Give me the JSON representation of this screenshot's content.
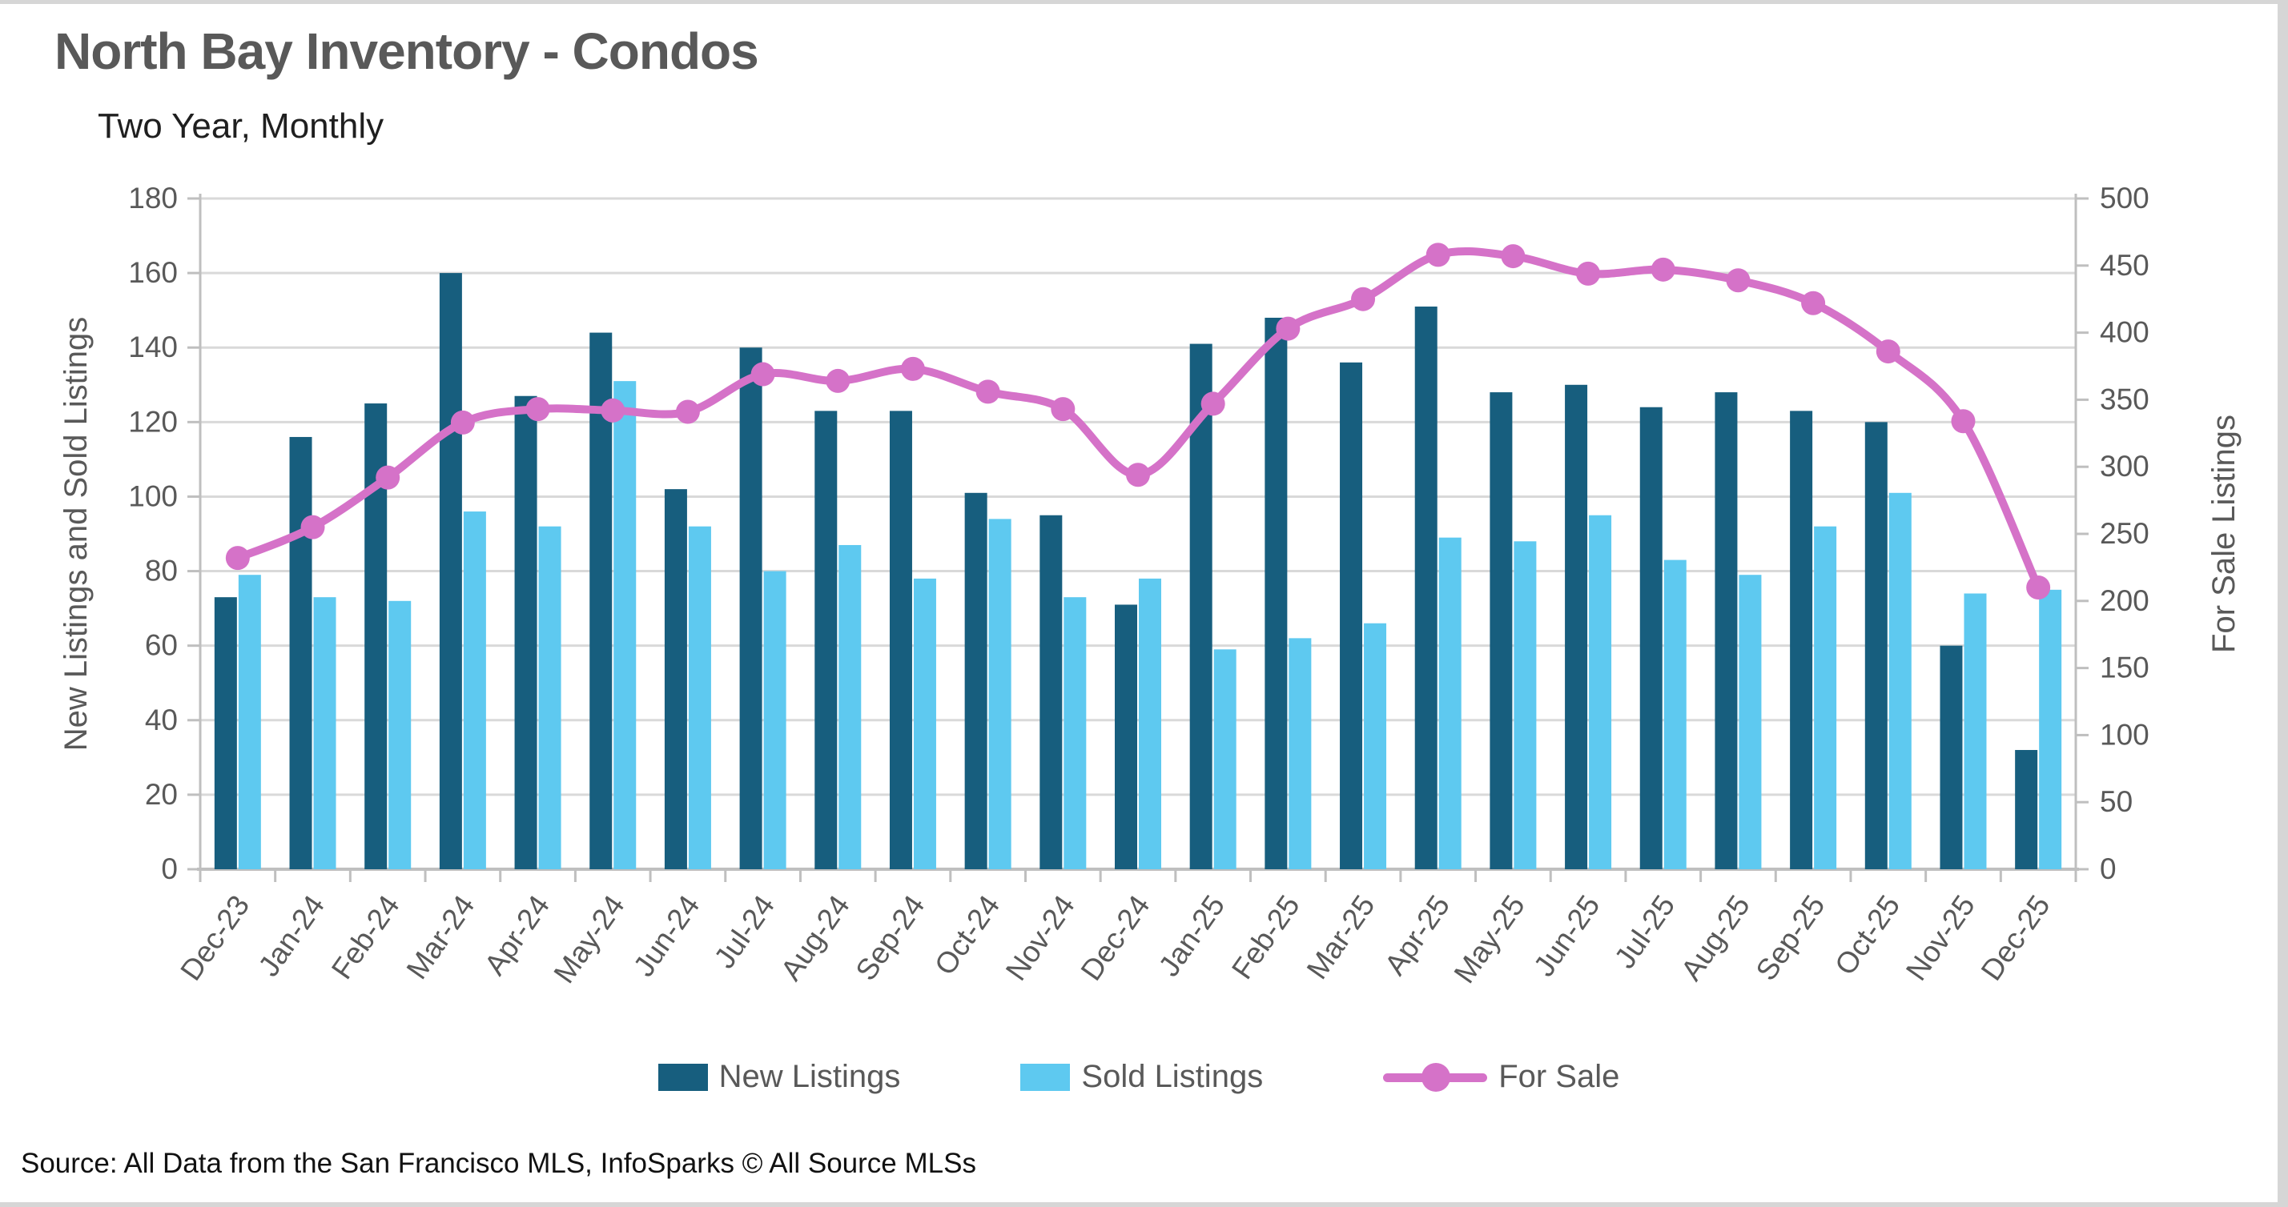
{
  "header": {
    "title": "North Bay Inventory - Condos",
    "subtitle": "Two Year, Monthly"
  },
  "footer": {
    "source": "Source: All Data from the San Francisco MLS, InfoSparks © All Source MLSs"
  },
  "colors": {
    "new_listings": "#175E7E",
    "sold_listings": "#5EC9F0",
    "for_sale": "#D572C8",
    "gridline": "#D9D9D9",
    "axis_line": "#BFBFBF",
    "tick_text": "#595959",
    "title_text": "#595959"
  },
  "chart_data": {
    "type": "bar",
    "subtype": "grouped-bars-with-line",
    "title": "North Bay Inventory - Condos",
    "subtitle": "Two Year, Monthly",
    "grid": true,
    "legend_position": "bottom",
    "categories": [
      "Dec-23",
      "Jan-24",
      "Feb-24",
      "Mar-24",
      "Apr-24",
      "May-24",
      "Jun-24",
      "Jul-24",
      "Aug-24",
      "Sep-24",
      "Oct-24",
      "Nov-24",
      "Dec-24",
      "Jan-25",
      "Feb-25",
      "Mar-25",
      "Apr-25",
      "May-25",
      "Jun-25",
      "Jul-25",
      "Aug-25",
      "Sep-25",
      "Oct-25",
      "Nov-25",
      "Dec-25"
    ],
    "series": [
      {
        "name": "New Listings",
        "type": "bar",
        "axis": "left",
        "color": "#175E7E",
        "values": [
          73,
          116,
          125,
          160,
          127,
          144,
          102,
          140,
          123,
          123,
          101,
          95,
          71,
          141,
          148,
          136,
          151,
          128,
          130,
          124,
          128,
          123,
          120,
          60,
          32
        ]
      },
      {
        "name": "Sold Listings",
        "type": "bar",
        "axis": "left",
        "color": "#5EC9F0",
        "values": [
          79,
          73,
          72,
          96,
          92,
          131,
          92,
          80,
          87,
          78,
          94,
          73,
          78,
          59,
          62,
          66,
          89,
          88,
          95,
          83,
          79,
          92,
          101,
          74,
          75
        ]
      },
      {
        "name": "For Sale",
        "type": "line",
        "axis": "right",
        "color": "#D572C8",
        "values": [
          232,
          255,
          292,
          333,
          343,
          342,
          341,
          369,
          364,
          373,
          356,
          343,
          294,
          347,
          403,
          425,
          458,
          457,
          444,
          447,
          439,
          422,
          386,
          334,
          210
        ]
      }
    ],
    "left_axis": {
      "label": "New Listings and Sold Listings",
      "min": 0,
      "max": 180,
      "step": 20,
      "ticks": [
        "180",
        "160",
        "140",
        "120",
        "100",
        "80",
        "60",
        "40",
        "20",
        "0"
      ]
    },
    "right_axis": {
      "label": "For Sale Listings",
      "min": 0,
      "max": 500,
      "step": 50,
      "ticks": [
        "500",
        "450",
        "400",
        "350",
        "300",
        "250",
        "200",
        "150",
        "100",
        "50",
        "0"
      ]
    }
  }
}
